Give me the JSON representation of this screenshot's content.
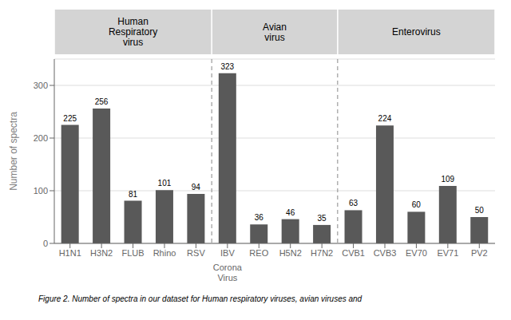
{
  "chart_data": {
    "type": "bar",
    "categories": [
      "H1N1",
      "H3N2",
      "FLUB",
      "Rhino",
      "RSV",
      "IBV",
      "REO",
      "H5N2",
      "H7N2",
      "CVB1",
      "CVB3",
      "EV70",
      "EV71",
      "PV2"
    ],
    "values": [
      225,
      256,
      81,
      101,
      94,
      323,
      36,
      46,
      35,
      63,
      224,
      60,
      109,
      50
    ],
    "color": "#595959",
    "ylabel": "Number of spectra",
    "ylim": [
      0,
      350
    ],
    "yticks": [
      0,
      100,
      200,
      300
    ],
    "grid": true,
    "data_labels": true,
    "groups": [
      {
        "label": "Human\nRespiratory\nvirus",
        "categories": [
          "H1N1",
          "H3N2",
          "FLUB",
          "Rhino",
          "RSV"
        ],
        "color": "#d4d4d4"
      },
      {
        "label": "Avian\nvirus",
        "categories": [
          "IBV",
          "REO",
          "H5N2",
          "H7N2"
        ],
        "color": "#d4d4d4"
      },
      {
        "label": "Enterovirus",
        "categories": [
          "CVB1",
          "CVB3",
          "EV70",
          "EV71",
          "PV2"
        ],
        "color": "#d4d4d4"
      }
    ],
    "annotations": [
      {
        "text": "Corona\nVirus",
        "category": "IBV"
      }
    ],
    "caption": "Figure 2. Number of spectra in our dataset for Human respiratory viruses, avian viruses and"
  }
}
